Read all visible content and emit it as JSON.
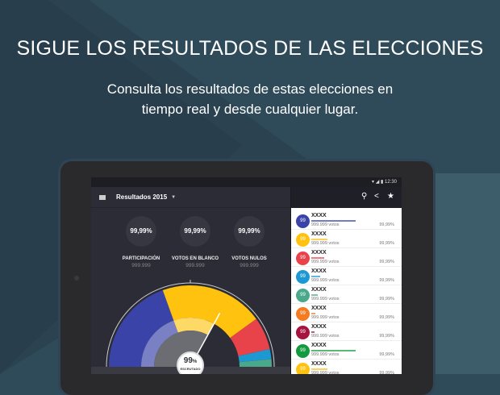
{
  "promo": {
    "headline": "SIGUE LOS RESULTADOS DE LAS ELECCIONES",
    "subtitle_line1": "Consulta los resultados de estas elecciones en",
    "subtitle_line2": "tiempo real y desde cualquier lugar."
  },
  "status_bar": {
    "time": "12:30"
  },
  "app_bar": {
    "title": "Resultados 2015",
    "icons": [
      "menu-icon",
      "search-icon",
      "share-icon",
      "star-icon"
    ]
  },
  "stats": [
    {
      "value": "99,99%",
      "label": "PARTICIPACIÓN",
      "count": "999.999"
    },
    {
      "value": "99,99%",
      "label": "VOTOS EN BLANCO",
      "count": "999.999"
    },
    {
      "value": "99,99%",
      "label": "VOTOS NULOS",
      "count": "999.999"
    }
  ],
  "gauge": {
    "percent": "99",
    "unit": "%",
    "label": "ESCRUTADO",
    "pointer_fraction": 0.66,
    "segments": [
      {
        "color": "#3a44a8",
        "share": 39
      },
      {
        "color": "#ffc20e",
        "share": 41
      },
      {
        "color": "#e8424a",
        "share": 13
      },
      {
        "color": "#1c98d3",
        "share": 4
      },
      {
        "color": "#4aa98a",
        "share": 3
      }
    ],
    "inner_colors": [
      "#7a80c4",
      "#ffd966"
    ]
  },
  "parties": [
    {
      "seats": "99",
      "name": "XXXX",
      "votes": "999.999 votos",
      "pct": "99,99%",
      "color": "#3a44a8",
      "bar": 0.55
    },
    {
      "seats": "99",
      "name": "XXXX",
      "votes": "999.999 votos",
      "pct": "99,99%",
      "color": "#ffc20e",
      "bar": 0.2
    },
    {
      "seats": "99",
      "name": "XXXX",
      "votes": "999.999 votos",
      "pct": "99,99%",
      "color": "#e8424a",
      "bar": 0.16
    },
    {
      "seats": "99",
      "name": "XXXX",
      "votes": "999.999 votos",
      "pct": "99,99%",
      "color": "#1c98d3",
      "bar": 0.11
    },
    {
      "seats": "99",
      "name": "XXXX",
      "votes": "999.999 votos",
      "pct": "99,99%",
      "color": "#4aa98a",
      "bar": 0.08
    },
    {
      "seats": "99",
      "name": "XXXX",
      "votes": "999.999 votos",
      "pct": "99,99%",
      "color": "#f47b20",
      "bar": 0.05
    },
    {
      "seats": "99",
      "name": "XXXX",
      "votes": "999.999 votos",
      "pct": "99,99%",
      "color": "#a8123e",
      "bar": 0.04
    },
    {
      "seats": "99",
      "name": "XXXX",
      "votes": "999.999 votos",
      "pct": "99,99%",
      "color": "#139a3f",
      "bar": 0.55
    },
    {
      "seats": "99",
      "name": "XXXX",
      "votes": "999.999 votos",
      "pct": "99,99%",
      "color": "#ffc20e",
      "bar": 0.2
    }
  ]
}
